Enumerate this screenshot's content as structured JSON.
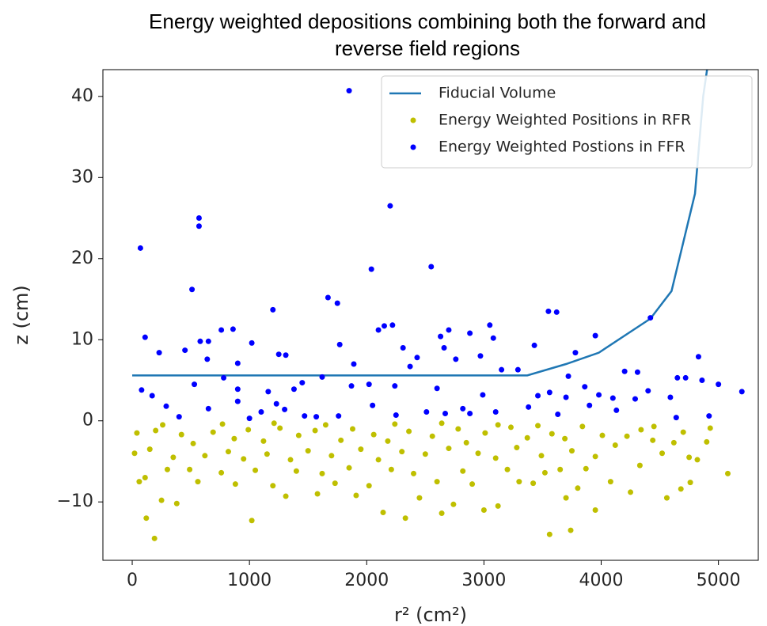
{
  "chart_data": {
    "type": "scatter",
    "title": "Energy weighted depositions combining both the forward and reverse field regions",
    "x_label": "r² (cm²)",
    "y_label": "z (cm)",
    "xlim": [
      -250,
      5340
    ],
    "ylim": [
      -17.2,
      43.3
    ],
    "xticks": [
      0,
      1000,
      2000,
      3000,
      4000,
      5000
    ],
    "yticks": [
      {
        "value": -10,
        "label": "−10"
      },
      0,
      10,
      20,
      30,
      40
    ],
    "legend": "upper right",
    "grid": false,
    "series": [
      {
        "name": "Fiducial Volume",
        "type": "line",
        "color": "#1f77b4",
        "x": [
          0,
          3370,
          3700,
          3980,
          4420,
          4600,
          4800,
          4870,
          4920
        ],
        "values": [
          5.6,
          5.6,
          7,
          8.4,
          12.6,
          16,
          28,
          40,
          45
        ]
      },
      {
        "name": "Energy Weighted Positions in RFR",
        "type": "scatter",
        "color": "#bfbf00",
        "x": [
          190,
          3560,
          3740,
          120,
          1020,
          2330,
          2140,
          2640,
          3000,
          3120,
          3950,
          380,
          250,
          1580,
          1910,
          2450,
          2740,
          1310,
          4560,
          4680,
          4250,
          3800,
          3700,
          60,
          110,
          560,
          880,
          1200,
          1730,
          2020,
          2600,
          2900,
          3300,
          3420,
          4080,
          4760,
          5080,
          300,
          490,
          760,
          1050,
          1400,
          1620,
          1850,
          2210,
          2400,
          2820,
          3200,
          3520,
          3650,
          3870,
          4330,
          4820,
          4520,
          4750,
          20,
          150,
          350,
          620,
          820,
          950,
          1150,
          1350,
          1500,
          1700,
          1950,
          2100,
          2300,
          2500,
          2700,
          2950,
          3100,
          3280,
          3490,
          3750,
          3950,
          4120,
          4440,
          4620,
          4900,
          40,
          200,
          420,
          520,
          690,
          870,
          990,
          1120,
          1260,
          1420,
          1560,
          1780,
          1880,
          2060,
          2180,
          2360,
          2560,
          2780,
          2850,
          3010,
          3230,
          3370,
          3580,
          3690,
          3840,
          4010,
          4220,
          4450,
          4700,
          4930,
          260,
          770,
          1210,
          1650,
          2240,
          2640,
          3120,
          3460,
          4340
        ],
        "values": [
          -14.5,
          -14,
          -13.5,
          -12,
          -12.3,
          -12,
          -11.3,
          -11.4,
          -11,
          -10.5,
          -11,
          -10.2,
          -9.8,
          -9,
          -9.2,
          -9.5,
          -10.3,
          -9.3,
          -9.5,
          -8.4,
          -8.8,
          -8.3,
          -9.5,
          -7.5,
          -7,
          -7.5,
          -7.8,
          -8,
          -7.7,
          -8,
          -7.5,
          -7.8,
          -7.5,
          -7.7,
          -7.5,
          -7.6,
          -6.5,
          -6,
          -6,
          -6.4,
          -6.1,
          -6.2,
          -6.5,
          -5.8,
          -6,
          -6.5,
          -6.2,
          -6,
          -6.4,
          -6,
          -5.9,
          -5.5,
          -4.8,
          -4,
          -4.5,
          -4,
          -3.5,
          -4.5,
          -4.3,
          -3.8,
          -4.7,
          -4.1,
          -4.8,
          -3.7,
          -4.3,
          -3.5,
          -4.8,
          -3.8,
          -4.1,
          -3.4,
          -4,
          -4.6,
          -3.3,
          -4.3,
          -3.7,
          -4.4,
          -3,
          -2.4,
          -2.7,
          -2.6,
          -1.5,
          -1.2,
          -1.7,
          -2.8,
          -1.4,
          -2.2,
          -1.1,
          -2.5,
          -0.9,
          -1.8,
          -1.2,
          -2.4,
          -1,
          -1.7,
          -2.5,
          -1.3,
          -1.9,
          -1,
          -2.7,
          -1.5,
          -0.8,
          -2.1,
          -1.6,
          -2.2,
          -0.7,
          -1.8,
          -1.9,
          -0.7,
          -1.4,
          -0.9,
          -0.5,
          -0.4,
          -0.3,
          -0.5,
          -0.4,
          -0.3,
          -0.5,
          -0.6,
          -1.1
        ]
      },
      {
        "name": "Energy Weighted Postions in FFR",
        "type": "scatter",
        "color": "#0000ff",
        "x": [
          70,
          570,
          570,
          1850,
          2200,
          2550,
          2040,
          510,
          1670,
          1750,
          1200,
          3550,
          3620,
          4420,
          2150,
          2220,
          2100,
          2700,
          3050,
          860,
          760,
          110,
          3950,
          2630,
          2880,
          3080,
          580,
          650,
          1020,
          1770,
          3430,
          230,
          450,
          1250,
          1310,
          2310,
          2660,
          2970,
          3780,
          4830,
          900,
          640,
          1890,
          2430,
          2760,
          3720,
          4200,
          4310,
          3150,
          3290,
          4650,
          4720,
          4860,
          5000,
          5200,
          4590,
          4400,
          4100,
          3860,
          3980,
          3700,
          3460,
          2990,
          2600,
          2240,
          2020,
          1870,
          1620,
          1450,
          1380,
          1160,
          900,
          780,
          530,
          170,
          80,
          290,
          400,
          650,
          900,
          1100,
          1300,
          1570,
          1760,
          2050,
          2250,
          2510,
          2670,
          2880,
          3100,
          3380,
          3630,
          3900,
          4130,
          4290,
          4640,
          4920,
          1000,
          1230,
          1470,
          2820,
          3560,
          2370
        ],
        "values": [
          21.3,
          25,
          24,
          40.7,
          26.5,
          19,
          18.7,
          16.2,
          15.2,
          14.5,
          13.7,
          13.5,
          13.4,
          12.7,
          11.7,
          11.8,
          11.2,
          11.2,
          11.8,
          11.3,
          11.2,
          10.3,
          10.5,
          10.4,
          10.8,
          10.2,
          9.8,
          9.8,
          9.6,
          9.4,
          9.3,
          8.4,
          8.7,
          8.2,
          8.1,
          9,
          9,
          8,
          8.4,
          7.9,
          7.1,
          7.6,
          7,
          7.8,
          7.6,
          5.5,
          6.1,
          6,
          6.3,
          6.3,
          5.3,
          5.3,
          5,
          4.5,
          3.6,
          2.9,
          3.7,
          2.8,
          4.2,
          3.2,
          2.9,
          3.1,
          3.2,
          4,
          4.3,
          4.5,
          4.3,
          5.4,
          4.7,
          3.9,
          3.6,
          3.9,
          5.3,
          4.5,
          3.1,
          3.8,
          1.8,
          0.5,
          1.5,
          2.4,
          1.1,
          1.4,
          0.5,
          0.6,
          1.9,
          0.7,
          1.1,
          0.9,
          0.9,
          1.1,
          1.7,
          0.8,
          1.9,
          1.3,
          2.7,
          0.4,
          0.6,
          0.3,
          2.1,
          0.6,
          1.5,
          3.5,
          6.7
        ]
      }
    ]
  }
}
